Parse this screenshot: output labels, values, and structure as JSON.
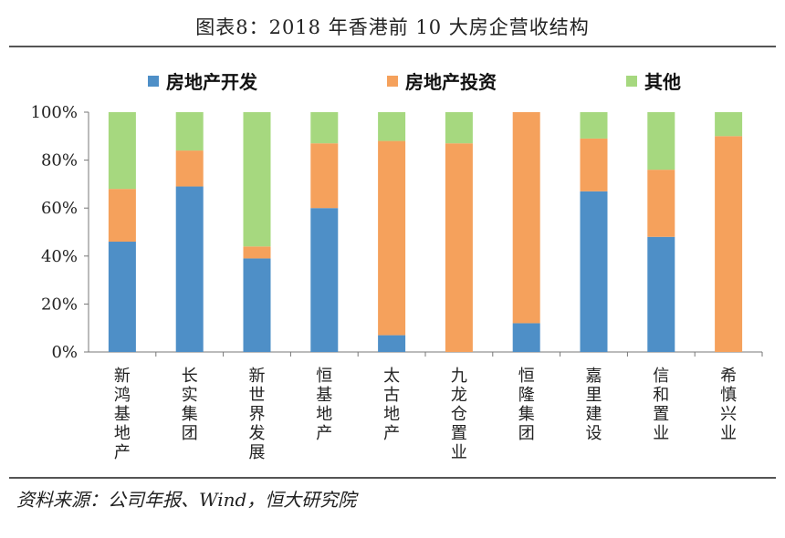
{
  "title": "图表8：2018 年香港前 10 大房企营收结构",
  "source": "资料来源：公司年报、Wind，恒大研究院",
  "chart_data": {
    "type": "bar",
    "stacked": true,
    "categories": [
      "新鸿基地产",
      "长实集团",
      "新世界发展",
      "恒基地产",
      "太古地产",
      "九龙仓置业",
      "恒隆集团",
      "嘉里建设",
      "信和置业",
      "希慎兴业"
    ],
    "series": [
      {
        "name": "房地产开发",
        "color": "#4e8fc7",
        "values": [
          46,
          69,
          39,
          60,
          7,
          0,
          12,
          67,
          48,
          0
        ]
      },
      {
        "name": "房地产投资",
        "color": "#f5a15c",
        "values": [
          22,
          15,
          5,
          27,
          81,
          87,
          88,
          22,
          28,
          90
        ]
      },
      {
        "name": "其他",
        "color": "#a6d87f",
        "values": [
          32,
          16,
          56,
          13,
          12,
          13,
          0,
          11,
          24,
          10
        ]
      }
    ],
    "yticks": [
      "0%",
      "20%",
      "40%",
      "60%",
      "80%",
      "100%"
    ],
    "ylim": [
      0,
      100
    ],
    "legend_position": "top"
  }
}
